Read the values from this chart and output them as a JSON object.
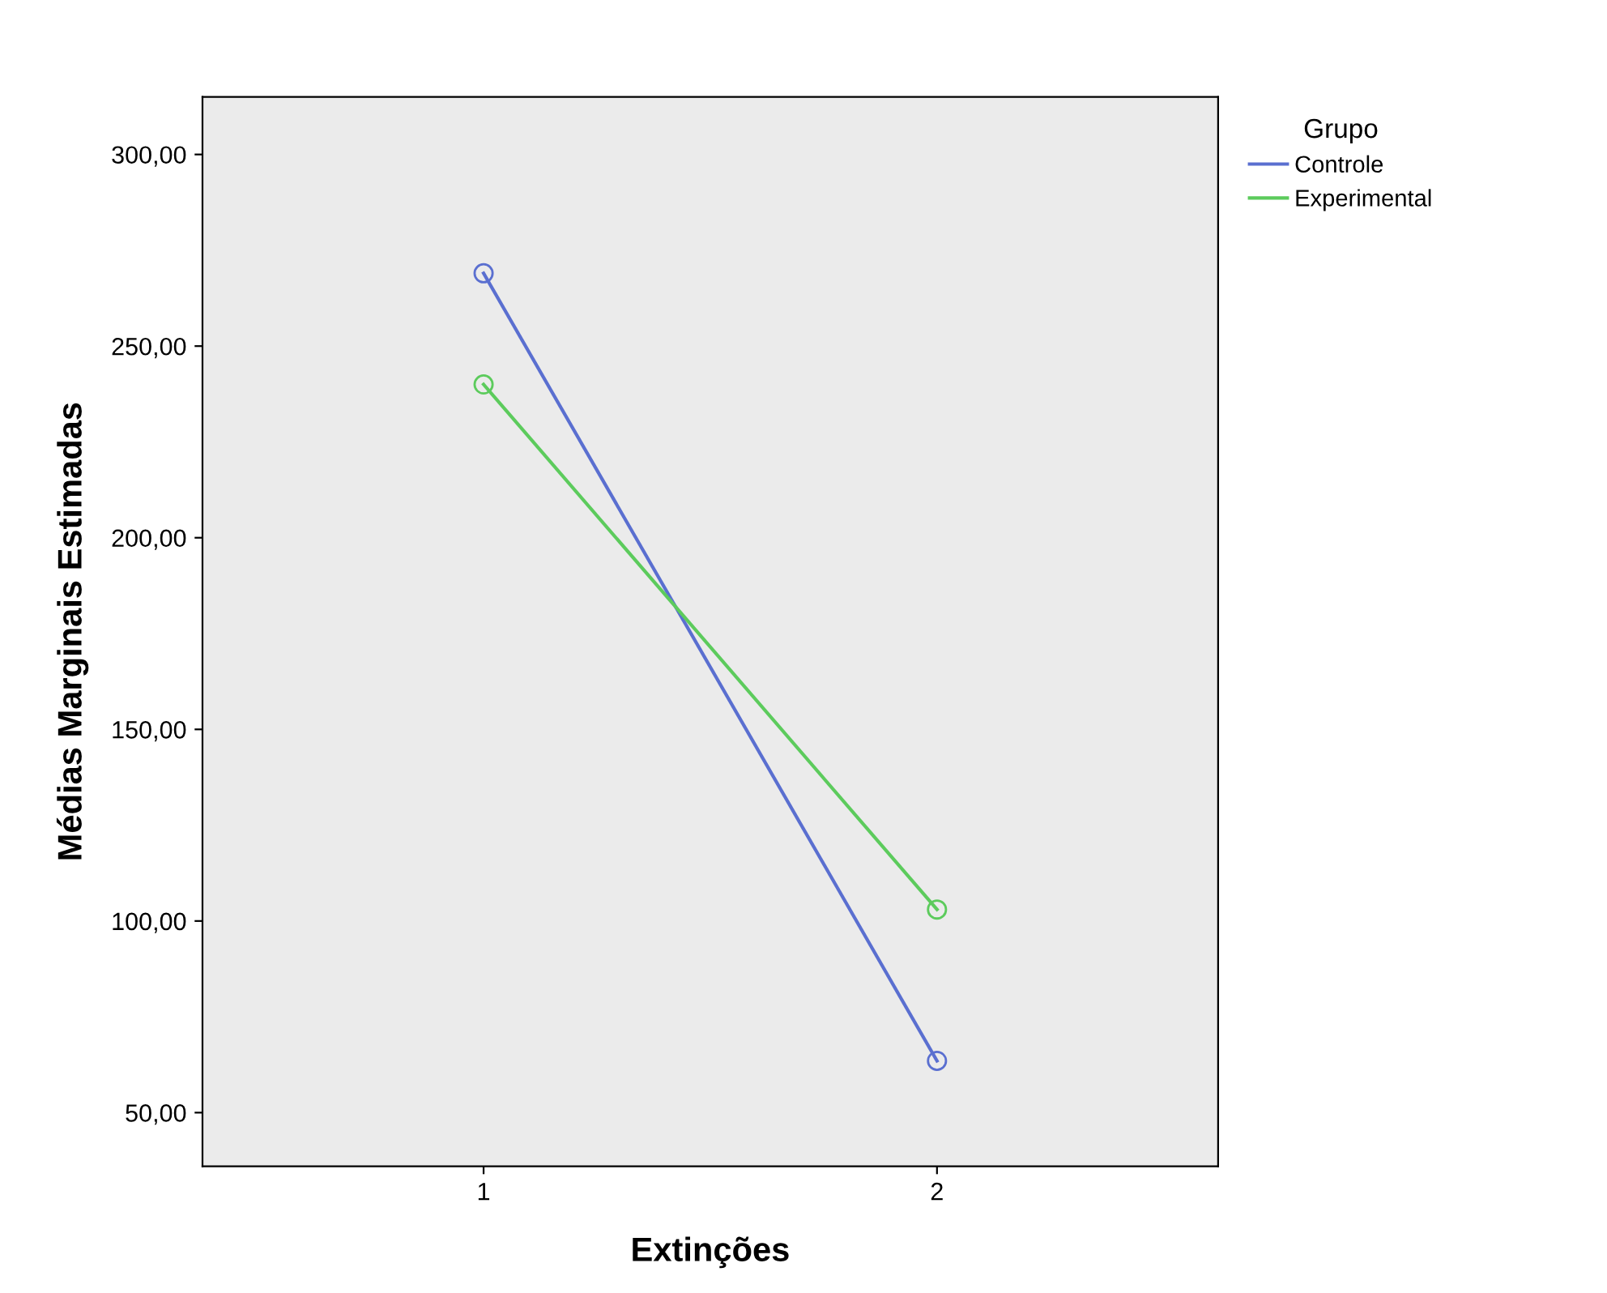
{
  "chart_data": {
    "type": "line",
    "xlabel": "Extinções",
    "ylabel": "Médias Marginais Estimadas",
    "legend_title": "Grupo",
    "categories": [
      "1",
      "2"
    ],
    "series": [
      {
        "name": "Controle",
        "color": "#5a6fd0",
        "values": [
          269,
          63.5
        ]
      },
      {
        "name": "Experimental",
        "color": "#5ccb5c",
        "values": [
          240,
          103
        ]
      }
    ],
    "ylim": [
      36,
      315
    ],
    "yticks": [
      {
        "value": 50,
        "label": "50,00"
      },
      {
        "value": 100,
        "label": "100,00"
      },
      {
        "value": 150,
        "label": "150,00"
      },
      {
        "value": 200,
        "label": "200,00"
      },
      {
        "value": 250,
        "label": "250,00"
      },
      {
        "value": 300,
        "label": "300,00"
      }
    ],
    "marker": "circle",
    "line_style": "solid",
    "legend": "top right",
    "grid": false
  }
}
